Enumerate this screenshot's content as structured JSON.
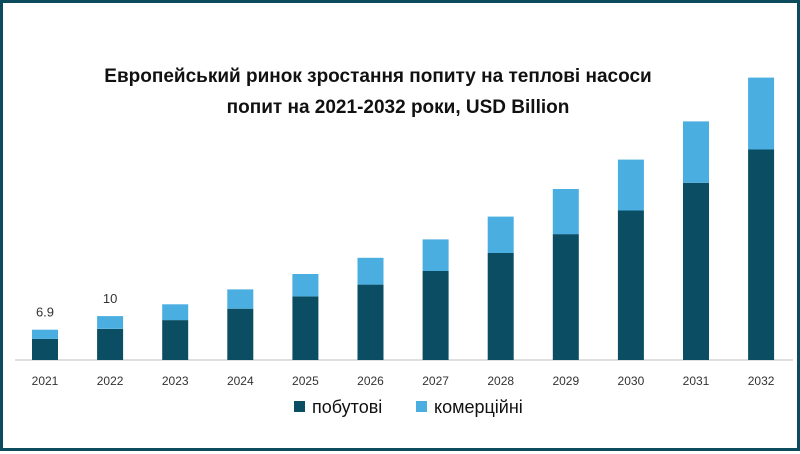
{
  "chart_data": {
    "type": "bar",
    "stacked": true,
    "title": "Европейський ринок зростання попиту на теплові насоси",
    "subtitle": "попит на 2021-2032 роки, USD Billion",
    "categories": [
      "2021",
      "2022",
      "2023",
      "2024",
      "2025",
      "2026",
      "2027",
      "2028",
      "2029",
      "2030",
      "2031",
      "2032"
    ],
    "series": [
      {
        "name": "побутові",
        "color": "#0b4d63",
        "values": [
          4.8,
          7.1,
          9.1,
          11.7,
          14.5,
          17.2,
          20.3,
          24.4,
          28.7,
          34.1,
          40.4,
          48.0
        ]
      },
      {
        "name": "комерційні",
        "color": "#4aaee0",
        "values": [
          2.1,
          2.9,
          3.6,
          4.4,
          5.1,
          6.1,
          7.2,
          8.3,
          10.3,
          11.6,
          14.0,
          16.4
        ]
      }
    ],
    "data_labels": [
      {
        "category": "2021",
        "text": "6.9"
      },
      {
        "category": "2022",
        "text": "10"
      }
    ],
    "ylim": [
      0,
      70
    ],
    "grid": false,
    "legend": "bottom"
  }
}
